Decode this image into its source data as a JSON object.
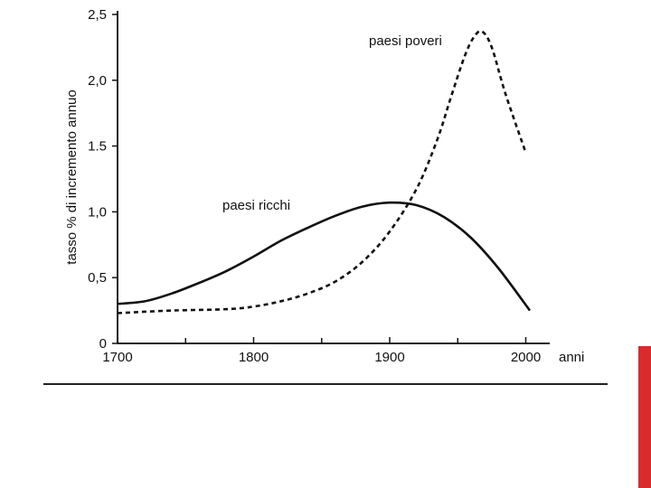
{
  "theme": {
    "accent": "#d92b2b",
    "ink": "#111111"
  },
  "chart_data": {
    "type": "line",
    "title": "",
    "xlabel": "anni",
    "ylabel": "tasso % di incremento annuo",
    "xlim": [
      1700,
      2010
    ],
    "ylim": [
      0,
      2.5
    ],
    "xticks": [
      1700,
      1800,
      1900,
      2000
    ],
    "xtick_labels": [
      "1700",
      "1800",
      "1900",
      "2000"
    ],
    "xminor_ticks": [
      1750,
      1850,
      1950
    ],
    "yticks": [
      0,
      0.5,
      1.0,
      1.5,
      2.0,
      2.5
    ],
    "ytick_labels": [
      "0",
      "0,5",
      "1,0",
      "1.5",
      "2,0",
      "2,5"
    ],
    "grid": false,
    "series": [
      {
        "name": "paesi ricchi",
        "style": "solid",
        "x": [
          1700,
          1720,
          1740,
          1760,
          1780,
          1800,
          1820,
          1840,
          1860,
          1880,
          1900,
          1920,
          1940,
          1960,
          1980,
          2003
        ],
        "y": [
          0.3,
          0.32,
          0.38,
          0.46,
          0.55,
          0.66,
          0.78,
          0.88,
          0.97,
          1.04,
          1.07,
          1.05,
          0.96,
          0.8,
          0.57,
          0.25
        ]
      },
      {
        "name": "paesi poveri",
        "style": "dashed",
        "x": [
          1700,
          1740,
          1780,
          1800,
          1820,
          1840,
          1860,
          1880,
          1900,
          1920,
          1935,
          1945,
          1955,
          1962,
          1968,
          1975,
          1985,
          2000
        ],
        "y": [
          0.23,
          0.25,
          0.26,
          0.28,
          0.32,
          0.38,
          0.47,
          0.62,
          0.85,
          1.18,
          1.55,
          1.87,
          2.18,
          2.33,
          2.37,
          2.25,
          1.9,
          1.45
        ]
      }
    ]
  }
}
